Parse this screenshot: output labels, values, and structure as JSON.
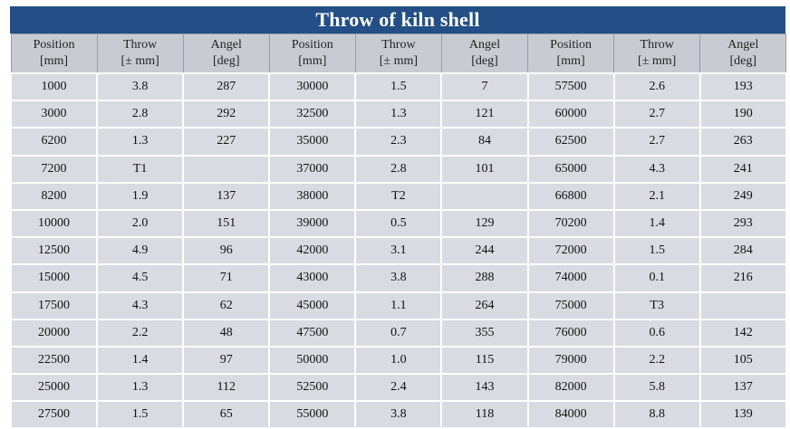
{
  "title": "Throw of kiln shell",
  "headers": [
    {
      "name": "Position",
      "unit": "[mm]"
    },
    {
      "name": "Throw",
      "unit": "[± mm]"
    },
    {
      "name": "Angel",
      "unit": "[deg]"
    },
    {
      "name": "Position",
      "unit": "[mm]"
    },
    {
      "name": "Throw",
      "unit": "[± mm]"
    },
    {
      "name": "Angel",
      "unit": "[deg]"
    },
    {
      "name": "Position",
      "unit": "[mm]"
    },
    {
      "name": "Throw",
      "unit": "[± mm]"
    },
    {
      "name": "Angel",
      "unit": "[deg]"
    }
  ],
  "rows": [
    [
      "1000",
      "3.8",
      "287",
      "30000",
      "1.5",
      "7",
      "57500",
      "2.6",
      "193"
    ],
    [
      "3000",
      "2.8",
      "292",
      "32500",
      "1.3",
      "121",
      "60000",
      "2.7",
      "190"
    ],
    [
      "6200",
      "1.3",
      "227",
      "35000",
      "2.3",
      "84",
      "62500",
      "2.7",
      "263"
    ],
    [
      "7200",
      "T1",
      "",
      "37000",
      "2.8",
      "101",
      "65000",
      "4.3",
      "241"
    ],
    [
      "8200",
      "1.9",
      "137",
      "38000",
      "T2",
      "",
      "66800",
      "2.1",
      "249"
    ],
    [
      "10000",
      "2.0",
      "151",
      "39000",
      "0.5",
      "129",
      "70200",
      "1.4",
      "293"
    ],
    [
      "12500",
      "4.9",
      "96",
      "42000",
      "3.1",
      "244",
      "72000",
      "1.5",
      "284"
    ],
    [
      "15000",
      "4.5",
      "71",
      "43000",
      "3.8",
      "288",
      "74000",
      "0.1",
      "216"
    ],
    [
      "17500",
      "4.3",
      "62",
      "45000",
      "1.1",
      "264",
      "75000",
      "T3",
      ""
    ],
    [
      "20000",
      "2.2",
      "48",
      "47500",
      "0.7",
      "355",
      "76000",
      "0.6",
      "142"
    ],
    [
      "22500",
      "1.4",
      "97",
      "50000",
      "1.0",
      "115",
      "79000",
      "2.2",
      "105"
    ],
    [
      "25000",
      "1.3",
      "112",
      "52500",
      "2.4",
      "143",
      "82000",
      "5.8",
      "137"
    ],
    [
      "27500",
      "1.5",
      "65",
      "55000",
      "3.8",
      "118",
      "84000",
      "8.8",
      "139"
    ]
  ]
}
